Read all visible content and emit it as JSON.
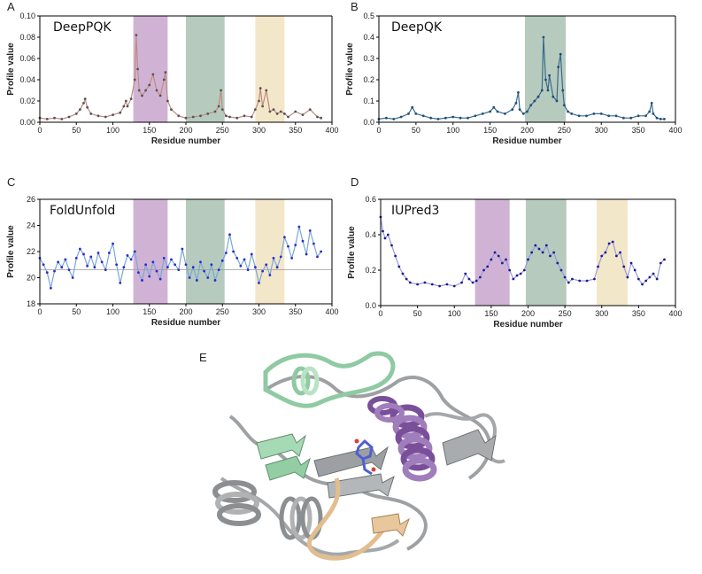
{
  "chart_data": [
    {
      "panel_label": "A",
      "title": "DeepPQK",
      "type": "line",
      "xlabel": "Residue number",
      "ylabel": "Profile value",
      "xlim": [
        0,
        400
      ],
      "ylim": [
        0,
        0.1
      ],
      "xticks": [
        "0",
        "50",
        "100",
        "150",
        "200",
        "250",
        "300",
        "350",
        "400"
      ],
      "yticks": [
        "0.00",
        "0.02",
        "0.04",
        "0.06",
        "0.08",
        "0.10"
      ],
      "color": "#c08a80",
      "marker_color": "#555555",
      "highlight_regions": [
        {
          "from": 128,
          "to": 175,
          "color": "#c8a6cc"
        },
        {
          "from": 200,
          "to": 253,
          "color": "#a9c2b3"
        },
        {
          "from": 295,
          "to": 335,
          "color": "#f1e3c0"
        }
      ],
      "series": [
        {
          "x": [
            0,
            10,
            20,
            30,
            40,
            50,
            55,
            60,
            62,
            65,
            70,
            80,
            90,
            100,
            110,
            115,
            118,
            120,
            125,
            130,
            132,
            134,
            136,
            140,
            145,
            150,
            155,
            160,
            165,
            170,
            172,
            175,
            180,
            190,
            200,
            210,
            220,
            230,
            240,
            245,
            248,
            250,
            255,
            260,
            270,
            280,
            290,
            295,
            300,
            302,
            305,
            310,
            315,
            320,
            325,
            330,
            335,
            340,
            350,
            360,
            370,
            380,
            385
          ],
          "y": [
            0.004,
            0.003,
            0.004,
            0.003,
            0.005,
            0.008,
            0.012,
            0.018,
            0.022,
            0.014,
            0.008,
            0.006,
            0.005,
            0.007,
            0.009,
            0.015,
            0.02,
            0.015,
            0.022,
            0.04,
            0.082,
            0.05,
            0.03,
            0.025,
            0.03,
            0.035,
            0.045,
            0.03,
            0.025,
            0.04,
            0.047,
            0.02,
            0.012,
            0.006,
            0.004,
            0.005,
            0.006,
            0.008,
            0.01,
            0.015,
            0.03,
            0.012,
            0.006,
            0.005,
            0.004,
            0.006,
            0.005,
            0.012,
            0.02,
            0.032,
            0.015,
            0.03,
            0.01,
            0.012,
            0.008,
            0.01,
            0.008,
            0.005,
            0.01,
            0.007,
            0.012,
            0.005,
            0.004
          ]
        }
      ]
    },
    {
      "panel_label": "B",
      "title": "DeepQK",
      "type": "line",
      "xlabel": "Residue number",
      "ylabel": "Profile value",
      "xlim": [
        0,
        400
      ],
      "ylim": [
        0,
        0.5
      ],
      "xticks": [
        "0",
        "50",
        "100",
        "150",
        "200",
        "250",
        "300",
        "350",
        "400"
      ],
      "yticks": [
        "0.0",
        "0.1",
        "0.2",
        "0.3",
        "0.4",
        "0.5"
      ],
      "color": "#3a6a8a",
      "marker_color": "#1f4f78",
      "highlight_regions": [
        {
          "from": 197,
          "to": 252,
          "color": "#a9c2b3"
        }
      ],
      "series": [
        {
          "x": [
            0,
            10,
            20,
            30,
            40,
            45,
            50,
            60,
            70,
            80,
            90,
            100,
            110,
            120,
            130,
            140,
            150,
            155,
            160,
            170,
            180,
            185,
            188,
            190,
            195,
            200,
            205,
            210,
            215,
            220,
            222,
            225,
            228,
            230,
            235,
            240,
            242,
            245,
            248,
            250,
            255,
            260,
            270,
            280,
            290,
            300,
            310,
            320,
            330,
            340,
            350,
            360,
            365,
            368,
            370,
            375,
            380,
            385
          ],
          "y": [
            0.015,
            0.02,
            0.015,
            0.025,
            0.04,
            0.07,
            0.04,
            0.03,
            0.02,
            0.015,
            0.02,
            0.025,
            0.02,
            0.02,
            0.03,
            0.04,
            0.05,
            0.07,
            0.05,
            0.04,
            0.06,
            0.09,
            0.14,
            0.06,
            0.04,
            0.05,
            0.08,
            0.1,
            0.12,
            0.15,
            0.4,
            0.2,
            0.15,
            0.22,
            0.12,
            0.1,
            0.26,
            0.32,
            0.15,
            0.08,
            0.05,
            0.04,
            0.03,
            0.03,
            0.04,
            0.04,
            0.03,
            0.03,
            0.02,
            0.02,
            0.03,
            0.03,
            0.05,
            0.09,
            0.04,
            0.02,
            0.015,
            0.015
          ]
        }
      ]
    },
    {
      "panel_label": "C",
      "title": "FoldUnfold",
      "type": "line",
      "xlabel": "Residue number",
      "ylabel": "Profile value",
      "xlim": [
        0,
        400
      ],
      "ylim": [
        18,
        26
      ],
      "xticks": [
        "0",
        "50",
        "100",
        "150",
        "200",
        "250",
        "300",
        "350",
        "400"
      ],
      "yticks": [
        "18",
        "20",
        "22",
        "24",
        "26"
      ],
      "color": "#7aa7d6",
      "marker_color": "#2a2ad0",
      "reference_line": 20.6,
      "highlight_regions": [
        {
          "from": 128,
          "to": 175,
          "color": "#c8a6cc"
        },
        {
          "from": 200,
          "to": 253,
          "color": "#a9c2b3"
        },
        {
          "from": 295,
          "to": 335,
          "color": "#f1e3c0"
        }
      ],
      "series": [
        {
          "x": [
            0,
            5,
            10,
            15,
            20,
            25,
            30,
            35,
            40,
            45,
            50,
            55,
            60,
            65,
            70,
            75,
            80,
            85,
            90,
            95,
            100,
            105,
            110,
            115,
            120,
            125,
            130,
            135,
            140,
            145,
            150,
            155,
            160,
            165,
            170,
            175,
            180,
            185,
            190,
            195,
            200,
            205,
            210,
            215,
            220,
            225,
            230,
            235,
            240,
            245,
            250,
            255,
            260,
            265,
            270,
            275,
            280,
            285,
            290,
            295,
            300,
            305,
            310,
            315,
            320,
            325,
            330,
            335,
            340,
            345,
            350,
            355,
            360,
            365,
            370,
            375,
            380,
            385
          ],
          "y": [
            21.5,
            21.0,
            20.4,
            19.2,
            20.5,
            21.2,
            20.8,
            21.4,
            20.6,
            20.0,
            21.5,
            22.2,
            21.8,
            20.9,
            21.6,
            20.8,
            21.9,
            21.2,
            20.6,
            21.9,
            22.6,
            21.0,
            19.6,
            20.8,
            21.7,
            21.4,
            22.0,
            20.4,
            19.8,
            21.0,
            20.1,
            21.2,
            20.5,
            19.9,
            21.5,
            20.8,
            21.4,
            21.0,
            20.6,
            22.2,
            21.0,
            20.0,
            20.8,
            19.8,
            21.2,
            20.5,
            20.0,
            21.0,
            19.8,
            20.6,
            21.3,
            21.9,
            23.3,
            22.0,
            21.5,
            20.9,
            21.4,
            20.6,
            21.8,
            20.8,
            19.6,
            20.5,
            21.0,
            20.2,
            21.5,
            20.8,
            21.6,
            23.1,
            22.4,
            21.5,
            22.5,
            23.9,
            22.8,
            21.8,
            23.6,
            22.6,
            21.6,
            22.0
          ]
        }
      ]
    },
    {
      "panel_label": "D",
      "title": "IUPred3",
      "type": "line",
      "xlabel": "Residue number",
      "ylabel": "Profile value",
      "xlim": [
        0,
        400
      ],
      "ylim": [
        0,
        0.6
      ],
      "xticks": [
        "0",
        "50",
        "100",
        "150",
        "200",
        "250",
        "300",
        "350",
        "400"
      ],
      "yticks": [
        "0.0",
        "0.2",
        "0.4",
        "0.6"
      ],
      "color": "#9a9ad0",
      "marker_color": "#1a1a9a",
      "highlight_regions": [
        {
          "from": 128,
          "to": 175,
          "color": "#c8a6cc"
        },
        {
          "from": 197,
          "to": 252,
          "color": "#a9c2b3"
        },
        {
          "from": 293,
          "to": 335,
          "color": "#f1e3c0"
        }
      ],
      "series": [
        {
          "x": [
            0,
            3,
            6,
            10,
            15,
            20,
            25,
            30,
            35,
            40,
            50,
            60,
            70,
            80,
            90,
            100,
            110,
            115,
            120,
            125,
            130,
            135,
            140,
            145,
            150,
            155,
            160,
            165,
            170,
            175,
            180,
            185,
            190,
            195,
            200,
            205,
            210,
            215,
            220,
            225,
            230,
            235,
            240,
            245,
            250,
            255,
            260,
            270,
            280,
            290,
            295,
            300,
            305,
            310,
            315,
            320,
            325,
            330,
            335,
            340,
            345,
            350,
            355,
            360,
            365,
            370,
            375,
            380,
            385
          ],
          "y": [
            0.5,
            0.42,
            0.38,
            0.4,
            0.34,
            0.28,
            0.22,
            0.18,
            0.15,
            0.13,
            0.12,
            0.13,
            0.12,
            0.11,
            0.12,
            0.11,
            0.13,
            0.18,
            0.15,
            0.13,
            0.14,
            0.16,
            0.2,
            0.22,
            0.26,
            0.3,
            0.28,
            0.24,
            0.26,
            0.2,
            0.15,
            0.17,
            0.18,
            0.2,
            0.26,
            0.3,
            0.34,
            0.32,
            0.3,
            0.34,
            0.28,
            0.3,
            0.24,
            0.2,
            0.16,
            0.13,
            0.15,
            0.14,
            0.14,
            0.15,
            0.22,
            0.28,
            0.3,
            0.35,
            0.36,
            0.28,
            0.3,
            0.22,
            0.16,
            0.24,
            0.2,
            0.15,
            0.12,
            0.14,
            0.16,
            0.18,
            0.15,
            0.24,
            0.26
          ]
        }
      ]
    }
  ],
  "structure_panel": {
    "panel_label": "E",
    "colors": {
      "base": "#b8babb",
      "mint": "#9fd4b0",
      "purple": "#8a62a8",
      "tan": "#e2bd8e",
      "ligand": "#4e5fd1"
    }
  }
}
